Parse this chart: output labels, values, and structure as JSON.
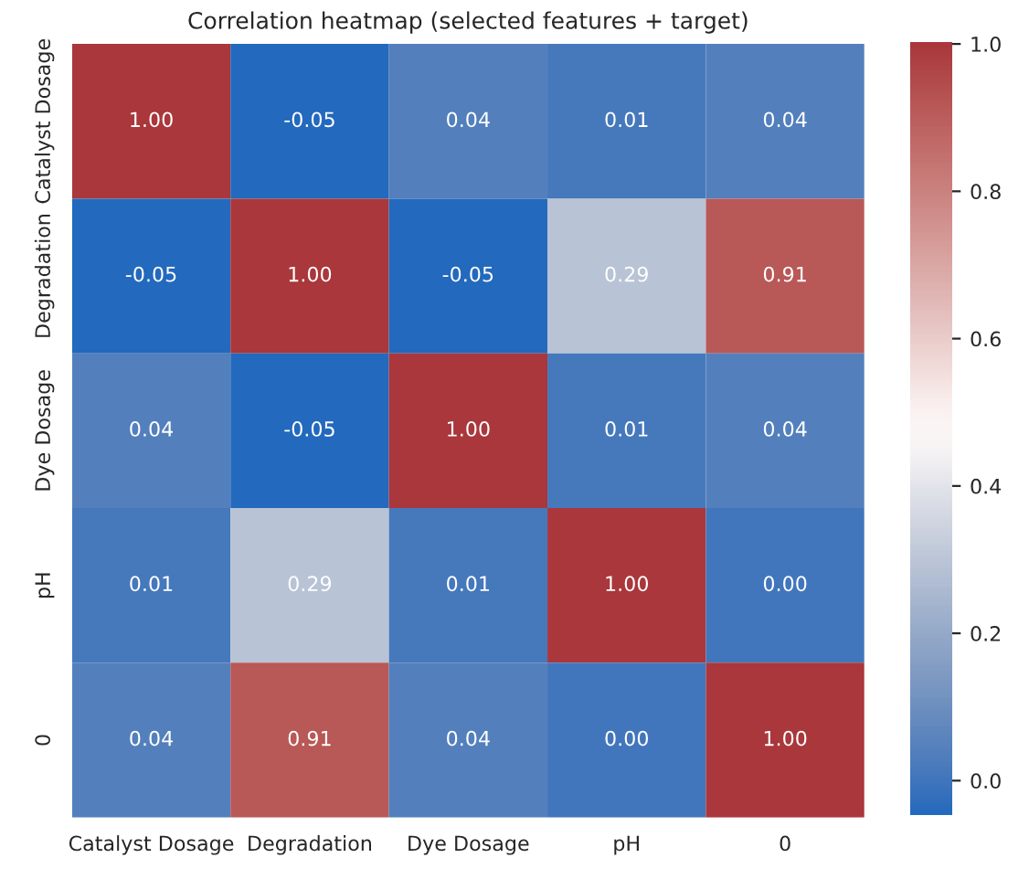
{
  "chart_data": {
    "type": "heatmap",
    "title": "Correlation heatmap (selected features + target)",
    "categories": [
      "Catalyst Dosage",
      "Degradation",
      "Dye Dosage",
      "pH",
      "0"
    ],
    "y_categories": [
      "Catalyst Dosage",
      "Degradation",
      "Dye Dosage",
      "pH",
      "0"
    ],
    "cells": [
      [
        1.0,
        -0.05,
        0.04,
        0.01,
        0.04
      ],
      [
        -0.05,
        1.0,
        -0.05,
        0.29,
        0.91
      ],
      [
        0.04,
        -0.05,
        1.0,
        0.01,
        0.04
      ],
      [
        0.01,
        0.29,
        0.01,
        1.0,
        0.0
      ],
      [
        0.04,
        0.91,
        0.04,
        0.0,
        1.0
      ]
    ],
    "cell_labels": [
      [
        "1.00",
        "-0.05",
        "0.04",
        "0.01",
        "0.04"
      ],
      [
        "-0.05",
        "1.00",
        "-0.05",
        "0.29",
        "0.91"
      ],
      [
        "0.04",
        "-0.05",
        "1.00",
        "0.01",
        "0.04"
      ],
      [
        "0.01",
        "0.29",
        "0.01",
        "1.00",
        "0.00"
      ],
      [
        "0.04",
        "0.91",
        "0.04",
        "0.00",
        "1.00"
      ]
    ],
    "data_labels": true,
    "clim": [
      -0.05,
      1.0
    ],
    "cticks": [
      {
        "value": 0.0,
        "label": "0.0"
      },
      {
        "value": 0.2,
        "label": "0.2"
      },
      {
        "value": 0.4,
        "label": "0.4"
      },
      {
        "value": 0.6,
        "label": "0.6"
      },
      {
        "value": 0.8,
        "label": "0.8"
      },
      {
        "value": 1.0,
        "label": "1.0"
      }
    ]
  }
}
